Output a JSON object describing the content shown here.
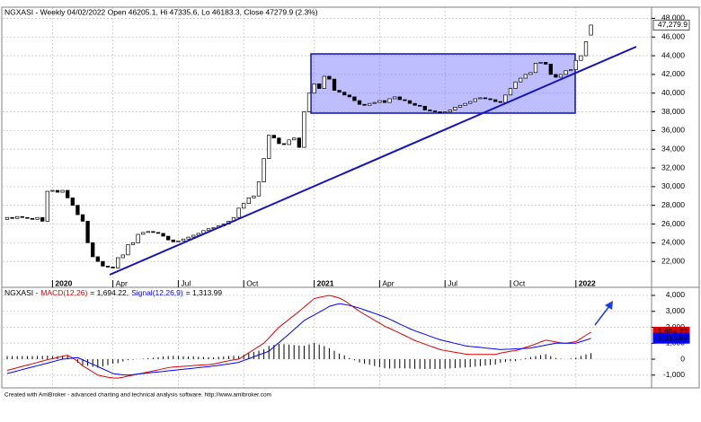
{
  "chart_data": [
    {
      "type": "candlestick",
      "title": "NGXASI - Weekly 04/02/2022 Open 46205.1, Hi 47335.6, Lo 46183.3, Close 47279.9 (2.3%)",
      "categories": [
        null,
        null,
        null,
        null,
        null,
        null,
        null,
        null,
        null,
        "2020",
        null,
        null,
        null,
        null,
        null,
        null,
        null,
        null,
        null,
        null,
        null,
        "Apr",
        null,
        null,
        null,
        null,
        null,
        null,
        null,
        null,
        null,
        null,
        null,
        null,
        "Jul",
        null,
        null,
        null,
        null,
        null,
        null,
        null,
        null,
        null,
        null,
        null,
        null,
        "Oct",
        null,
        null,
        null,
        null,
        null,
        null,
        null,
        null,
        null,
        null,
        null,
        null,
        null,
        "2021",
        null,
        null,
        null,
        null,
        null,
        null,
        null,
        null,
        null,
        null,
        null,
        null,
        "Apr",
        null,
        null,
        null,
        null,
        null,
        null,
        null,
        null,
        null,
        null,
        null,
        null,
        "Jul",
        null,
        null,
        null,
        null,
        null,
        null,
        null,
        null,
        null,
        null,
        null,
        null,
        "Oct",
        null,
        null,
        null,
        null,
        null,
        null,
        null,
        null,
        null,
        null,
        null,
        null,
        "2022",
        null,
        null,
        null
      ],
      "open": [
        26500,
        26700,
        26600,
        26800,
        26700,
        26600,
        26500,
        26700,
        26300,
        29500,
        29600,
        29400,
        29600,
        28800,
        28000,
        27000,
        26300,
        24000,
        22500,
        22000,
        21500,
        21400,
        21300,
        22400,
        22700,
        23800,
        24000,
        24900,
        25100,
        25200,
        25100,
        25000,
        24700,
        24300,
        24100,
        24200,
        24400,
        24600,
        24800,
        25000,
        25300,
        25500,
        25600,
        25800,
        26000,
        26300,
        26700,
        27700,
        28200,
        28800,
        29000,
        30500,
        33000,
        35500,
        35200,
        34600,
        34500,
        35000,
        35200,
        34200,
        38000,
        40000,
        41000,
        40500,
        41800,
        41500,
        40300,
        40100,
        39800,
        39600,
        39200,
        38800,
        38700,
        38900,
        39000,
        39200,
        39000,
        39400,
        39600,
        39300,
        39200,
        38900,
        38700,
        38600,
        38200,
        38100,
        38000,
        37900,
        38000,
        38200,
        38500,
        38700,
        38900,
        39100,
        39400,
        39500,
        39400,
        39300,
        39100,
        39000,
        39800,
        40500,
        41200,
        41600,
        42000,
        42200,
        43200,
        43300,
        43100,
        42000,
        41700,
        42000,
        42400,
        42500,
        43500,
        44000,
        46205.1
      ],
      "close": [
        26700,
        26600,
        26800,
        26700,
        26600,
        26500,
        26700,
        26300,
        29500,
        29600,
        29400,
        29600,
        28800,
        28000,
        27000,
        26300,
        24000,
        22500,
        22000,
        21500,
        21400,
        21300,
        22400,
        22700,
        23800,
        24000,
        24900,
        25100,
        25200,
        25100,
        25000,
        24700,
        24300,
        24100,
        24200,
        24400,
        24600,
        24800,
        25000,
        25300,
        25500,
        25600,
        25800,
        26000,
        26300,
        26700,
        27700,
        28200,
        28800,
        29000,
        30500,
        33000,
        35500,
        35200,
        34600,
        34500,
        35000,
        35200,
        34200,
        38000,
        40000,
        41000,
        40500,
        41800,
        41500,
        40300,
        40100,
        39800,
        39600,
        39200,
        38800,
        38700,
        38900,
        39000,
        39200,
        39000,
        39400,
        39600,
        39300,
        39200,
        38900,
        38700,
        38600,
        38200,
        38100,
        38000,
        37900,
        38000,
        38200,
        38500,
        38700,
        38900,
        39100,
        39400,
        39500,
        39400,
        39300,
        39100,
        39000,
        39800,
        40500,
        41200,
        41600,
        42000,
        42200,
        43200,
        43300,
        43100,
        42000,
        41700,
        42000,
        42400,
        42500,
        43500,
        44000,
        45500,
        47279.9
      ],
      "last_value_label": "47,279.9",
      "up_color": "#ffffff",
      "down_color": "#000000",
      "ylim": [
        20000,
        49000
      ],
      "yticks": [
        {
          "value": 22000,
          "label": "22,000"
        },
        {
          "value": 24000,
          "label": "24,000"
        },
        {
          "value": 26000,
          "label": "26,000"
        },
        {
          "value": 28000,
          "label": "28,000"
        },
        {
          "value": 30000,
          "label": "30,000"
        },
        {
          "value": 32000,
          "label": "32,000"
        },
        {
          "value": 34000,
          "label": "34,000"
        },
        {
          "value": 36000,
          "label": "36,000"
        },
        {
          "value": 38000,
          "label": "38,000"
        },
        {
          "value": 40000,
          "label": "40,000"
        },
        {
          "value": 42000,
          "label": "42,000"
        },
        {
          "value": 44000,
          "label": "44,000"
        },
        {
          "value": 46000,
          "label": "46,000"
        },
        {
          "value": 48000,
          "label": "48,000"
        }
      ],
      "grid": true
    },
    {
      "type": "line",
      "title": "NGXASI -",
      "header_values": [
        "= 1,694.22,",
        "= 1,313.99"
      ],
      "series": [
        {
          "name": "MACD(12,26)",
          "color": "#e00000",
          "last_value_label": "1,694.22",
          "values": [
            -700,
            -620,
            -540,
            -450,
            -370,
            -290,
            -200,
            -120,
            -30,
            30,
            110,
            190,
            250,
            70,
            -130,
            -420,
            -600,
            -800,
            -1000,
            -1070,
            -1130,
            -1180,
            -1190,
            -1130,
            -1060,
            -1000,
            -930,
            -870,
            -800,
            -740,
            -670,
            -600,
            -530,
            -490,
            -470,
            -450,
            -430,
            -400,
            -380,
            -360,
            -340,
            -310,
            -240,
            -170,
            -100,
            -40,
            0,
            200,
            400,
            600,
            800,
            1000,
            1330,
            1670,
            2000,
            2250,
            2500,
            2750,
            3000,
            3270,
            3530,
            3800,
            3870,
            3940,
            4000,
            3920,
            3830,
            3670,
            3450,
            3220,
            3000,
            2810,
            2630,
            2440,
            2260,
            2070,
            1930,
            1780,
            1630,
            1480,
            1330,
            1170,
            1060,
            940,
            830,
            720,
            600,
            540,
            490,
            430,
            380,
            320,
            300,
            300,
            300,
            300,
            300,
            300,
            380,
            440,
            500,
            530,
            630,
            740,
            840,
            950,
            1080,
            1190,
            1140,
            1080,
            1030,
            1000,
            1050,
            1100,
            1300,
            1500,
            1694.22
          ]
        },
        {
          "name": "Signal(12,26,9)",
          "color": "#0000ff",
          "last_value_label": "1,313.99",
          "values": [
            -900,
            -820,
            -740,
            -650,
            -570,
            -490,
            -410,
            -330,
            -250,
            -160,
            -80,
            0,
            30,
            70,
            100,
            -40,
            -180,
            -320,
            -460,
            -610,
            -750,
            -900,
            -940,
            -980,
            -1000,
            -970,
            -930,
            -900,
            -870,
            -830,
            -800,
            -770,
            -730,
            -700,
            -670,
            -630,
            -600,
            -570,
            -530,
            -500,
            -470,
            -430,
            -390,
            -340,
            -300,
            -250,
            -200,
            -80,
            30,
            150,
            270,
            380,
            500,
            770,
            1040,
            1310,
            1580,
            1860,
            2140,
            2420,
            2600,
            2770,
            2950,
            3120,
            3310,
            3400,
            3480,
            3430,
            3370,
            3290,
            3200,
            3090,
            2980,
            2870,
            2760,
            2640,
            2510,
            2360,
            2200,
            2060,
            1910,
            1780,
            1670,
            1560,
            1440,
            1330,
            1220,
            1140,
            1070,
            990,
            920,
            840,
            800,
            770,
            740,
            700,
            670,
            640,
            600,
            620,
            630,
            650,
            660,
            680,
            700,
            760,
            820,
            880,
            940,
            1000,
            1000,
            1000,
            1000,
            1000,
            1100,
            1200,
            1313.99
          ]
        }
      ],
      "histogram": {
        "color": "#000000",
        "values": [
          200,
          200,
          200,
          200,
          200,
          200,
          210,
          210,
          220,
          190,
          190,
          190,
          220,
          0,
          -230,
          -380,
          -420,
          -480,
          -540,
          -460,
          -380,
          -280,
          -250,
          -150,
          -60,
          -30,
          0,
          30,
          70,
          90,
          130,
          170,
          200,
          210,
          200,
          180,
          170,
          170,
          150,
          140,
          130,
          120,
          150,
          170,
          200,
          210,
          200,
          280,
          370,
          450,
          530,
          620,
          830,
          900,
          960,
          940,
          920,
          890,
          860,
          850,
          930,
          1030,
          920,
          820,
          690,
          520,
          350,
          240,
          80,
          -70,
          -200,
          -280,
          -350,
          -430,
          -500,
          -570,
          -580,
          -580,
          -570,
          -580,
          -580,
          -610,
          -610,
          -620,
          -610,
          -610,
          -620,
          -600,
          -580,
          -560,
          -540,
          -520,
          -500,
          -470,
          -440,
          -400,
          -370,
          -340,
          -220,
          -180,
          -130,
          -120,
          -30,
          60,
          140,
          190,
          260,
          310,
          200,
          80,
          30,
          0,
          50,
          100,
          200,
          300,
          380.23
        ]
      },
      "ylim": [
        -1800,
        4450
      ],
      "yticks": [
        {
          "value": -1000,
          "label": "-1,000"
        },
        0,
        {
          "value": 1000,
          "label": "1,000"
        },
        {
          "value": 2000,
          "label": "2,000"
        },
        {
          "value": 3000,
          "label": "3,000"
        },
        {
          "value": 4000,
          "label": "4,000"
        }
      ],
      "grid": true
    }
  ],
  "footer": "Created with AmiBroker - advanced charting and technical analysis software. http://www.amibroker.com"
}
